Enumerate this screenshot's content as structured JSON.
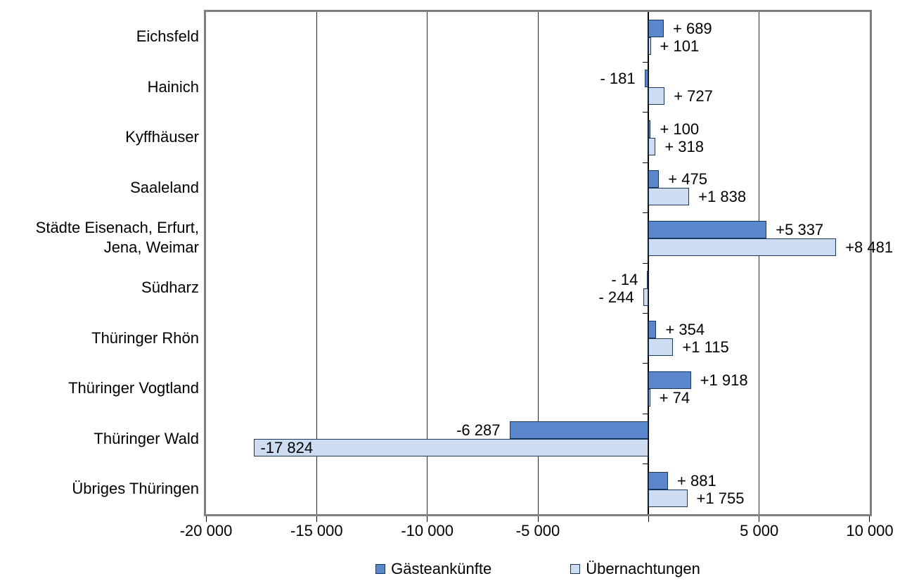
{
  "chart_data": {
    "type": "bar",
    "orientation": "horizontal",
    "title": "",
    "categories": [
      "Eichsfeld",
      "Hainich",
      "Kyffhäuser",
      "Saaleland",
      "Städte Eisenach, Erfurt, Jena, Weimar",
      "Südharz",
      "Thüringer Rhön",
      "Thüringer Vogtland",
      "Thüringer Wald",
      "Übriges Thüringen"
    ],
    "series": [
      {
        "name": "Gästeankünfte",
        "color": "#5b87cc",
        "border_color": "#17375d",
        "values": [
          689,
          -181,
          100,
          475,
          5337,
          -14,
          354,
          1918,
          -6287,
          881
        ],
        "labels": [
          "+ 689",
          "- 181",
          "+ 100",
          "+ 475",
          "+5 337",
          "- 14",
          "+ 354",
          "+1 918",
          "-6 287",
          "+ 881"
        ]
      },
      {
        "name": "Übernachtungen",
        "color": "#cedcf1",
        "border_color": "#17375d",
        "values": [
          101,
          727,
          318,
          1838,
          8481,
          -244,
          1115,
          74,
          -17824,
          1755
        ],
        "labels": [
          "+ 101",
          "+ 727",
          "+ 318",
          "+1 838",
          "+8 481",
          "- 244",
          "+1 115",
          "+ 74",
          "-17 824",
          "+1 755"
        ],
        "inside_label_indices": [
          8
        ]
      }
    ],
    "x_axis": {
      "min": -20000,
      "max": 10000,
      "tick_step": 5000,
      "ticks": [
        {
          "value": -20000,
          "label": "-20 000"
        },
        {
          "value": -15000,
          "label": "-15 000"
        },
        {
          "value": -10000,
          "label": "-10 000"
        },
        {
          "value": -5000,
          "label": "-5 000"
        },
        {
          "value": 0,
          "label": ""
        },
        {
          "value": 5000,
          "label": "5 000"
        },
        {
          "value": 10000,
          "label": "10 000"
        }
      ],
      "gridlines": true
    },
    "legend": {
      "position": "bottom",
      "items": [
        "Gästeankünfte",
        "Übernachtungen"
      ]
    }
  }
}
